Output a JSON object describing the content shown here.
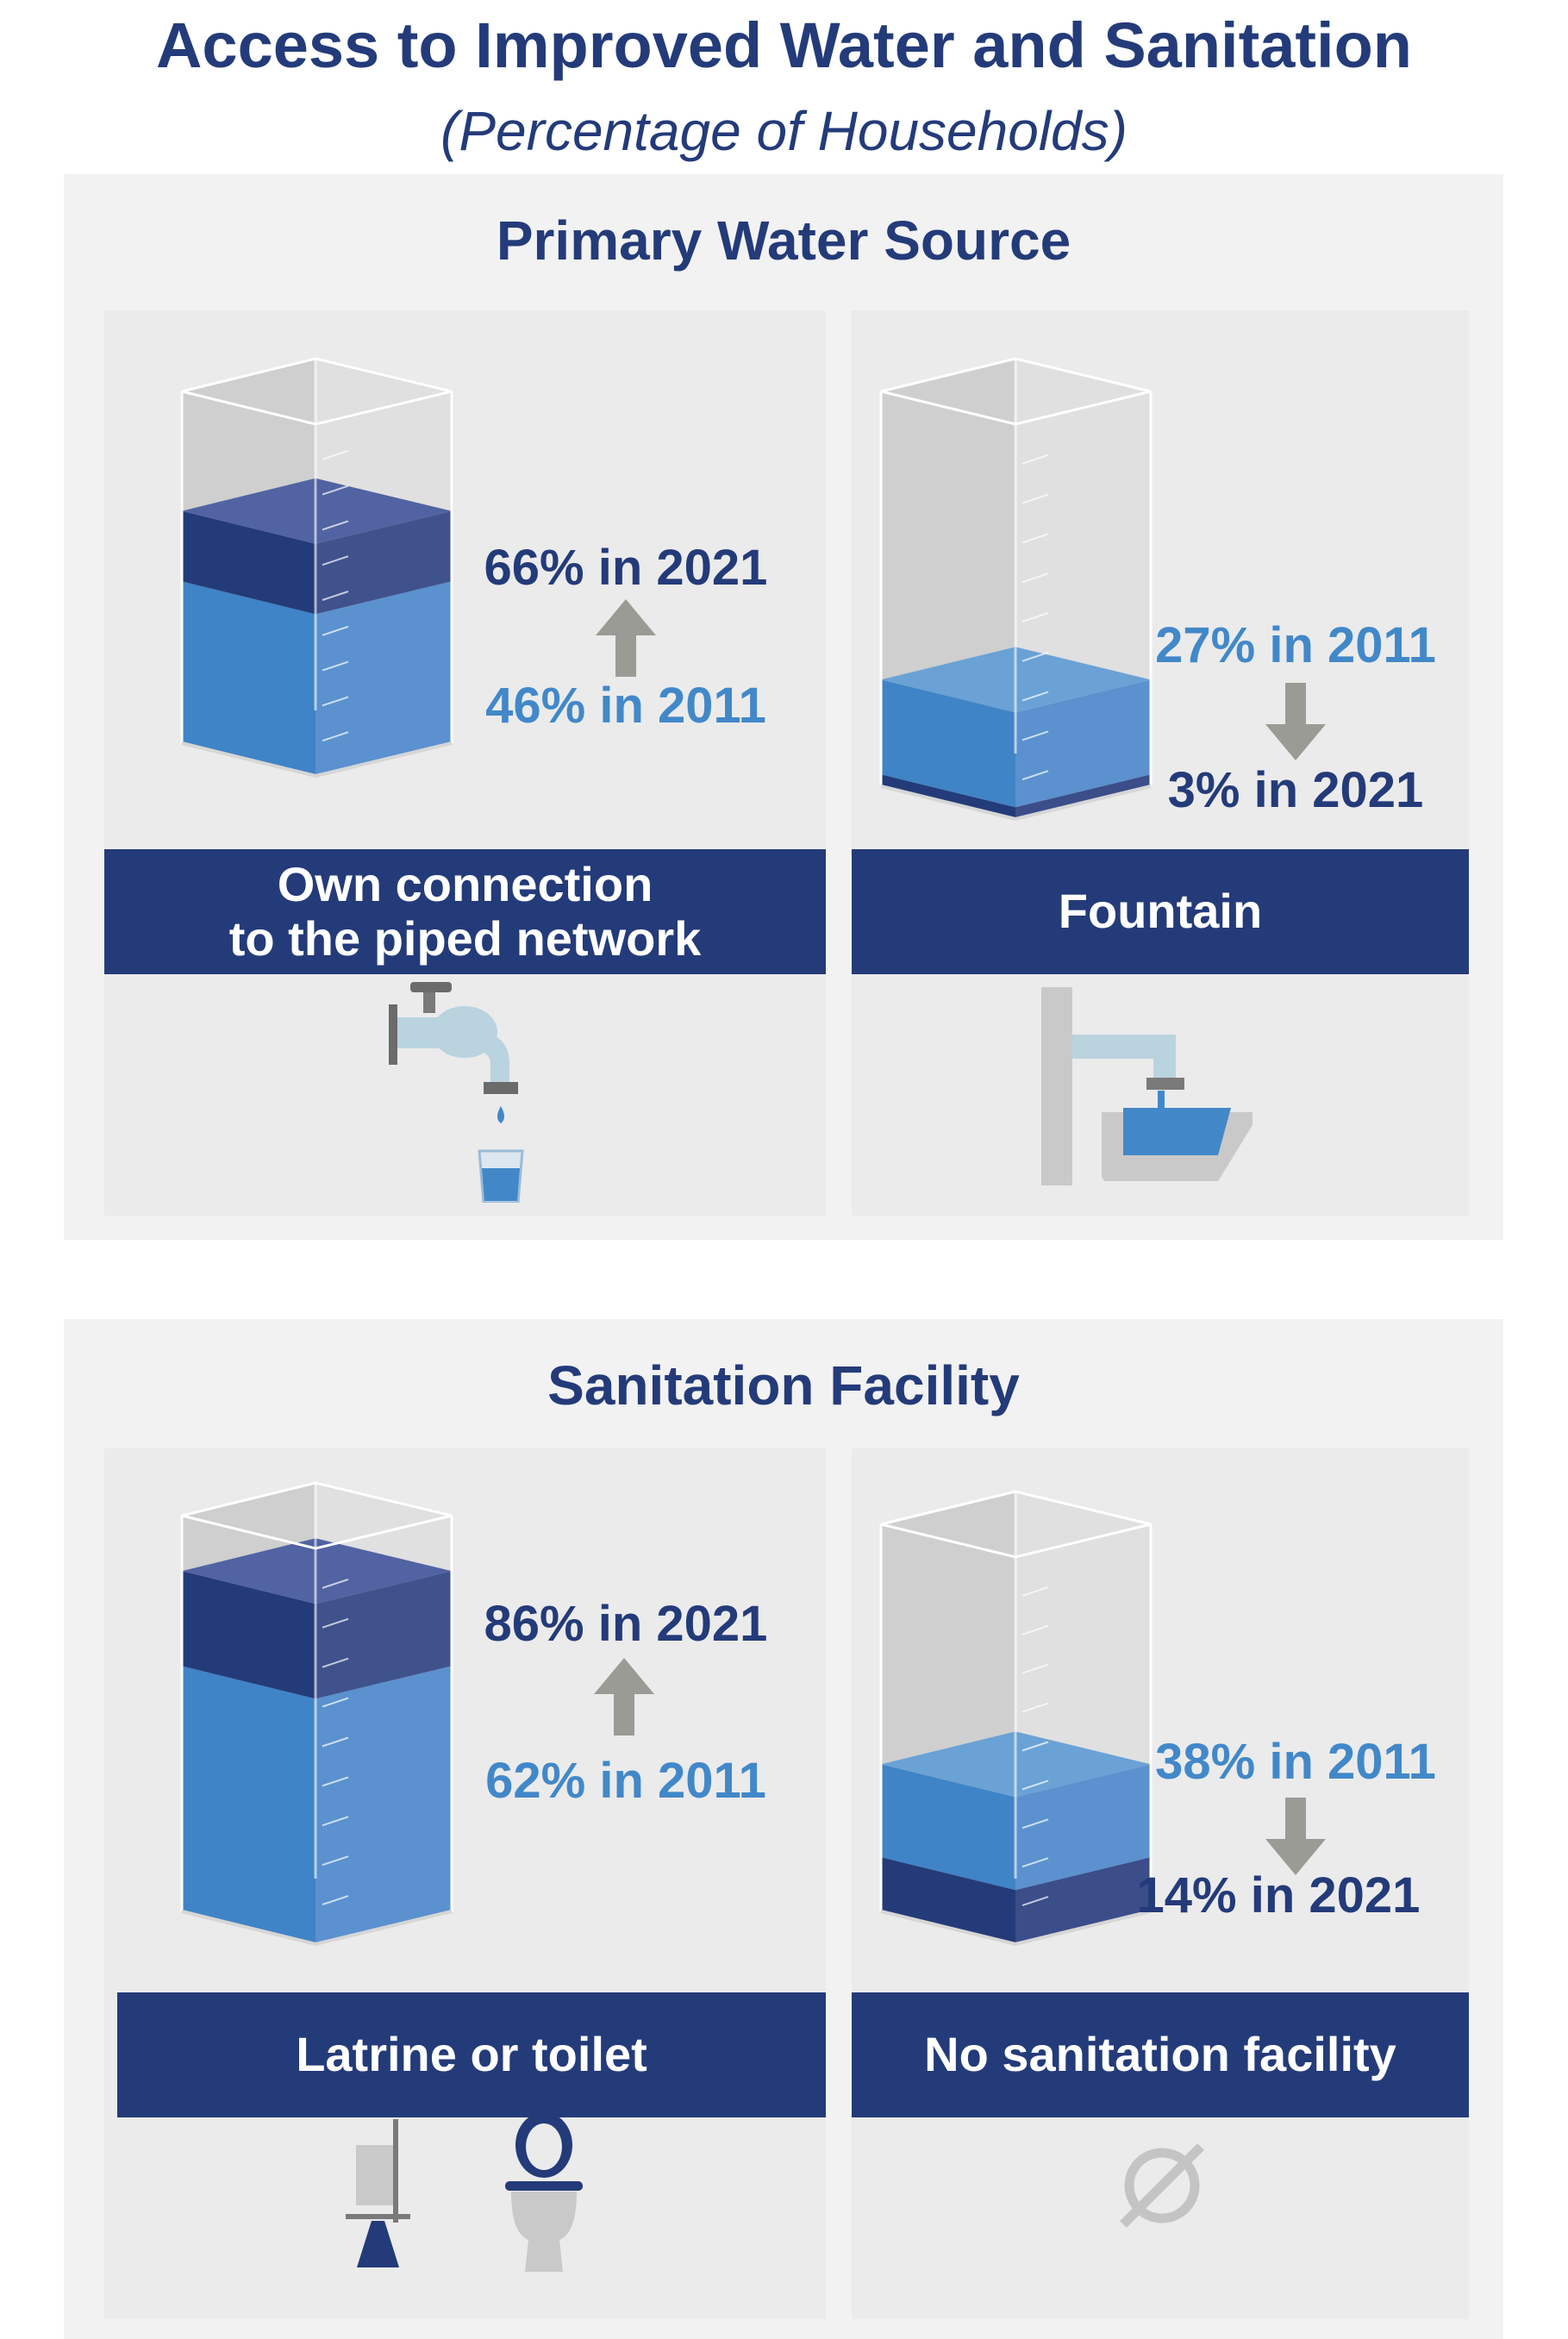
{
  "title": "Access to Improved Water and Sanitation",
  "subtitle": "(Percentage of Households)",
  "colors": {
    "navy": "#243b7a",
    "light_blue": "#4288c9",
    "panel_bg": "#ebebeb",
    "section_bg": "#f2f2f2",
    "arrow_gray": "#9b9b96"
  },
  "sections": [
    {
      "title": "Primary Water Source",
      "panels": [
        {
          "label": "Own connection\nto the piped network",
          "label_2021": "66% in 2021",
          "label_2011": "46% in 2011",
          "trend": "up",
          "icon": "faucet-with-glass-icon"
        },
        {
          "label": "Fountain",
          "label_2021": "3% in 2021",
          "label_2011": "27% in 2011",
          "trend": "down",
          "icon": "public-fountain-icon"
        }
      ]
    },
    {
      "title": "Sanitation Facility",
      "panels": [
        {
          "label": "Latrine or toilet",
          "label_2021": "86% in 2021",
          "label_2011": "62% in 2011",
          "trend": "up",
          "icon": "latrine-and-toilet-icon"
        },
        {
          "label": "No sanitation facility",
          "label_2021": "14% in 2021",
          "label_2011": "38% in 2011",
          "trend": "down",
          "icon": "empty-set-icon"
        }
      ]
    }
  ],
  "chart_data": {
    "type": "bar",
    "categories": [
      "Own connection to the piped network",
      "Fountain",
      "Latrine or toilet",
      "No sanitation facility"
    ],
    "series": [
      {
        "name": "2011",
        "values": [
          46,
          27,
          62,
          38
        ]
      },
      {
        "name": "2021",
        "values": [
          66,
          3,
          86,
          14
        ]
      }
    ],
    "title": "Access to Improved Water and Sanitation",
    "subtitle": "(Percentage of Households)",
    "ylim": [
      0,
      100
    ]
  }
}
